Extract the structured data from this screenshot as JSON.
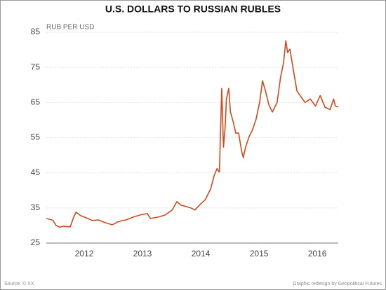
{
  "chart_data": {
    "type": "line",
    "title": "U.S. DOLLARS TO RUSSIAN RUBLES",
    "y_label": "RUB PER USD",
    "source": "Source: © XX",
    "credit": "Graphic redesign by Geopolitical Futures",
    "color": "#d2491c",
    "grid": true,
    "xlim": [
      2011.85,
      2016.86
    ],
    "xticks": [
      {
        "value": 2012.5,
        "label": "2012"
      },
      {
        "value": 2013.5,
        "label": "2013"
      },
      {
        "value": 2014.5,
        "label": "2014"
      },
      {
        "value": 2015.5,
        "label": "2015"
      },
      {
        "value": 2016.5,
        "label": "2016"
      }
    ],
    "ylim": [
      25,
      85
    ],
    "yticks": [
      25,
      35,
      45,
      55,
      65,
      75,
      85
    ],
    "x": [
      2011.85,
      2011.96,
      2012.02,
      2012.08,
      2012.14,
      2012.26,
      2012.32,
      2012.36,
      2012.44,
      2012.56,
      2012.64,
      2012.74,
      2012.86,
      2012.98,
      2013.1,
      2013.22,
      2013.34,
      2013.46,
      2013.58,
      2013.64,
      2013.77,
      2013.89,
      2014.01,
      2014.09,
      2014.16,
      2014.25,
      2014.33,
      2014.4,
      2014.49,
      2014.58,
      2014.67,
      2014.73,
      2014.78,
      2014.82,
      2014.86,
      2014.89,
      2014.92,
      2014.94,
      2014.98,
      2015.01,
      2015.06,
      2015.1,
      2015.15,
      2015.2,
      2015.23,
      2015.27,
      2015.33,
      2015.39,
      2015.45,
      2015.51,
      2015.56,
      2015.61,
      2015.67,
      2015.73,
      2015.81,
      2015.87,
      2015.92,
      2015.96,
      2015.99,
      2016.03,
      2016.09,
      2016.15,
      2016.23,
      2016.29,
      2016.38,
      2016.47,
      2016.55,
      2016.63,
      2016.72,
      2016.78,
      2016.81,
      2016.86
    ],
    "values": [
      32,
      31.5,
      30,
      29.5,
      29.8,
      29.6,
      32.4,
      33.8,
      32.8,
      32,
      31.4,
      31.6,
      30.8,
      30.2,
      31.2,
      31.6,
      32.4,
      33,
      33.4,
      32,
      32.4,
      33,
      34.4,
      36.8,
      35.8,
      35.4,
      35,
      34.4,
      36,
      37.4,
      40.4,
      44.2,
      46.2,
      45.2,
      69,
      52.3,
      58.3,
      66,
      69,
      62.3,
      59.3,
      56.3,
      56.3,
      51.3,
      49.3,
      52.3,
      55.3,
      57.3,
      60.3,
      65,
      71.2,
      68.3,
      64.3,
      62.3,
      65,
      72.2,
      76.2,
      82.6,
      79.2,
      80.2,
      74.2,
      68.3,
      66.4,
      65,
      66,
      64,
      67,
      63.7,
      63,
      66,
      64,
      63.7
    ]
  }
}
